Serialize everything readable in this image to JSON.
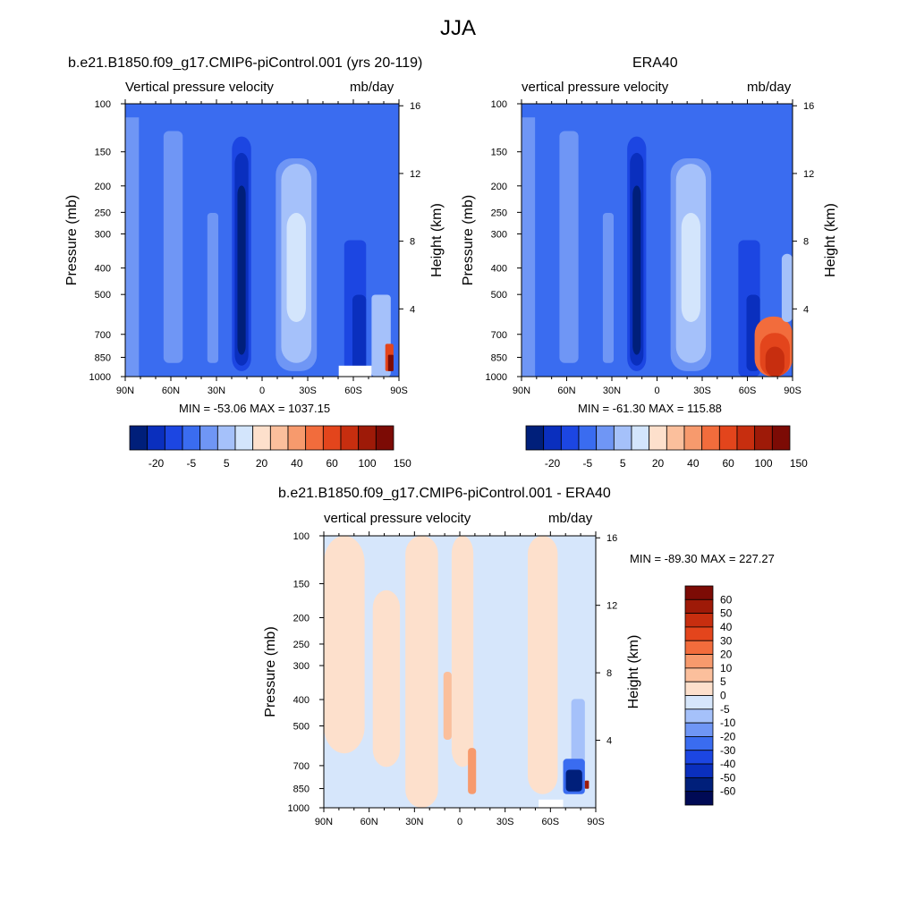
{
  "page_title": "JJA",
  "palette": {
    "blues": [
      "#001f7a",
      "#0a2fbe",
      "#1c46e2",
      "#3a6cf0",
      "#6f96f5",
      "#a5c1fa",
      "#d3e5fc"
    ],
    "reds": [
      "#fde0cc",
      "#fbbf9c",
      "#f79a6d",
      "#f26c3c",
      "#e3451c",
      "#c72e0f",
      "#9e1a08",
      "#7c0b05"
    ]
  },
  "chart_data": [
    {
      "type": "heatmap",
      "id": "model",
      "title": "b.e21.B1850.f09_g17.CMIP6-piControl.001 (yrs 20-119)",
      "left_label": "Vertical pressure velocity",
      "right_label": "mb/day",
      "ylabel": "Pressure (mb)",
      "ylabel_right": "Height (km)",
      "x_ticks": [
        "90N",
        "60N",
        "30N",
        "0",
        "30S",
        "60S",
        "90S"
      ],
      "y_ticks": [
        100,
        150,
        200,
        250,
        300,
        400,
        500,
        700,
        850,
        1000
      ],
      "y_right_ticks": [
        16,
        12,
        8,
        4
      ],
      "ylim": [
        1000,
        100
      ],
      "stats": "MIN = -53.06  MAX = 1037.15",
      "colorbar_labels": [
        "-20",
        "-5",
        "5",
        "20",
        "40",
        "60",
        "100",
        "150"
      ],
      "min": -53.06,
      "max": 1037.15
    },
    {
      "type": "heatmap",
      "id": "obs",
      "title": "ERA40",
      "left_label": "vertical pressure velocity",
      "right_label": "mb/day",
      "ylabel": "Pressure (mb)",
      "ylabel_right": "Height (km)",
      "x_ticks": [
        "90N",
        "60N",
        "30N",
        "0",
        "30S",
        "60S",
        "90S"
      ],
      "y_ticks": [
        100,
        150,
        200,
        250,
        300,
        400,
        500,
        700,
        850,
        1000
      ],
      "y_right_ticks": [
        16,
        12,
        8,
        4
      ],
      "ylim": [
        1000,
        100
      ],
      "stats": "MIN = -61.30  MAX = 115.88",
      "colorbar_labels": [
        "-20",
        "-5",
        "5",
        "20",
        "40",
        "60",
        "100",
        "150"
      ],
      "min": -61.3,
      "max": 115.88
    },
    {
      "type": "heatmap",
      "id": "diff",
      "title": "b.e21.B1850.f09_g17.CMIP6-piControl.001 - ERA40",
      "left_label": "vertical pressure velocity",
      "right_label": "mb/day",
      "ylabel": "Pressure (mb)",
      "ylabel_right": "Height (km)",
      "x_ticks": [
        "90N",
        "60N",
        "30N",
        "0",
        "30S",
        "60S",
        "90S"
      ],
      "y_ticks": [
        100,
        150,
        200,
        250,
        300,
        400,
        500,
        700,
        850,
        1000
      ],
      "y_right_ticks": [
        16,
        12,
        8,
        4
      ],
      "ylim": [
        1000,
        100
      ],
      "stats": "MIN = -89.30  MAX = 227.27",
      "colorbar_labels": [
        "60",
        "50",
        "40",
        "30",
        "20",
        "10",
        "5",
        "0",
        "-5",
        "-10",
        "-20",
        "-30",
        "-40",
        "-50",
        "-60"
      ],
      "min": -89.3,
      "max": 227.27
    }
  ]
}
